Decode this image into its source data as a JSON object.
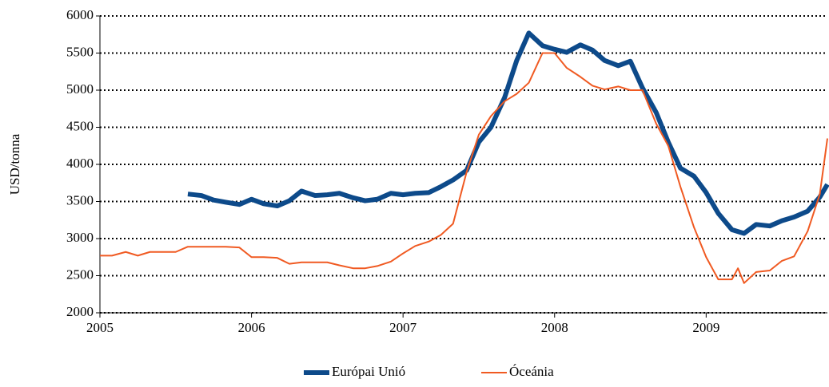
{
  "chart_data": {
    "type": "line",
    "y_label": "USD/tonna",
    "xlim": [
      2005,
      2009.8
    ],
    "xticks": [
      2005,
      2006,
      2007,
      2008,
      2009
    ],
    "ylim": [
      2000,
      6000
    ],
    "yticks": [
      2000,
      2500,
      3000,
      3500,
      4000,
      4500,
      5000,
      5500,
      6000
    ],
    "grid": true,
    "legend": "bottom",
    "series": [
      {
        "name": "Európai Unió",
        "color": "#0d4a8a",
        "x": [
          2005.58,
          2005.67,
          2005.75,
          2005.83,
          2005.92,
          2006.0,
          2006.08,
          2006.17,
          2006.25,
          2006.33,
          2006.42,
          2006.5,
          2006.58,
          2006.67,
          2006.75,
          2006.83,
          2006.92,
          2007.0,
          2007.08,
          2007.17,
          2007.25,
          2007.33,
          2007.42,
          2007.5,
          2007.58,
          2007.67,
          2007.75,
          2007.83,
          2007.92,
          2008.0,
          2008.08,
          2008.17,
          2008.25,
          2008.33,
          2008.42,
          2008.5,
          2008.58,
          2008.67,
          2008.75,
          2008.83,
          2008.92,
          2009.0,
          2009.08,
          2009.17,
          2009.25,
          2009.33,
          2009.42,
          2009.5,
          2009.58,
          2009.67,
          2009.75,
          2009.8
        ],
        "values": [
          3600,
          3580,
          3520,
          3490,
          3460,
          3530,
          3470,
          3440,
          3510,
          3640,
          3580,
          3590,
          3610,
          3550,
          3510,
          3530,
          3610,
          3590,
          3610,
          3620,
          3700,
          3790,
          3920,
          4300,
          4500,
          4900,
          5400,
          5770,
          5600,
          5550,
          5510,
          5610,
          5540,
          5400,
          5330,
          5390,
          5030,
          4700,
          4300,
          3950,
          3840,
          3620,
          3340,
          3120,
          3070,
          3190,
          3170,
          3240,
          3290,
          3370,
          3560,
          3730
        ]
      },
      {
        "name": "Óceánia",
        "color": "#f05a22",
        "x": [
          2005.0,
          2005.08,
          2005.17,
          2005.25,
          2005.33,
          2005.42,
          2005.5,
          2005.58,
          2005.67,
          2005.75,
          2005.83,
          2005.92,
          2006.0,
          2006.08,
          2006.17,
          2006.25,
          2006.33,
          2006.42,
          2006.5,
          2006.58,
          2006.67,
          2006.75,
          2006.83,
          2006.92,
          2007.0,
          2007.08,
          2007.17,
          2007.25,
          2007.33,
          2007.42,
          2007.5,
          2007.58,
          2007.67,
          2007.75,
          2007.83,
          2007.92,
          2008.0,
          2008.08,
          2008.17,
          2008.25,
          2008.33,
          2008.42,
          2008.5,
          2008.58,
          2008.67,
          2008.75,
          2008.83,
          2008.92,
          2009.0,
          2009.08,
          2009.17,
          2009.21,
          2009.25,
          2009.33,
          2009.42,
          2009.5,
          2009.58,
          2009.67,
          2009.75,
          2009.8
        ],
        "values": [
          2770,
          2770,
          2820,
          2770,
          2820,
          2820,
          2820,
          2890,
          2890,
          2890,
          2890,
          2880,
          2750,
          2750,
          2740,
          2660,
          2680,
          2680,
          2680,
          2640,
          2600,
          2600,
          2630,
          2690,
          2800,
          2900,
          2960,
          3050,
          3200,
          3900,
          4400,
          4650,
          4850,
          4950,
          5100,
          5500,
          5500,
          5300,
          5180,
          5060,
          5010,
          5050,
          5000,
          5000,
          4550,
          4250,
          3700,
          3150,
          2750,
          2450,
          2450,
          2600,
          2400,
          2550,
          2570,
          2700,
          2760,
          3100,
          3600,
          4350
        ]
      }
    ]
  }
}
